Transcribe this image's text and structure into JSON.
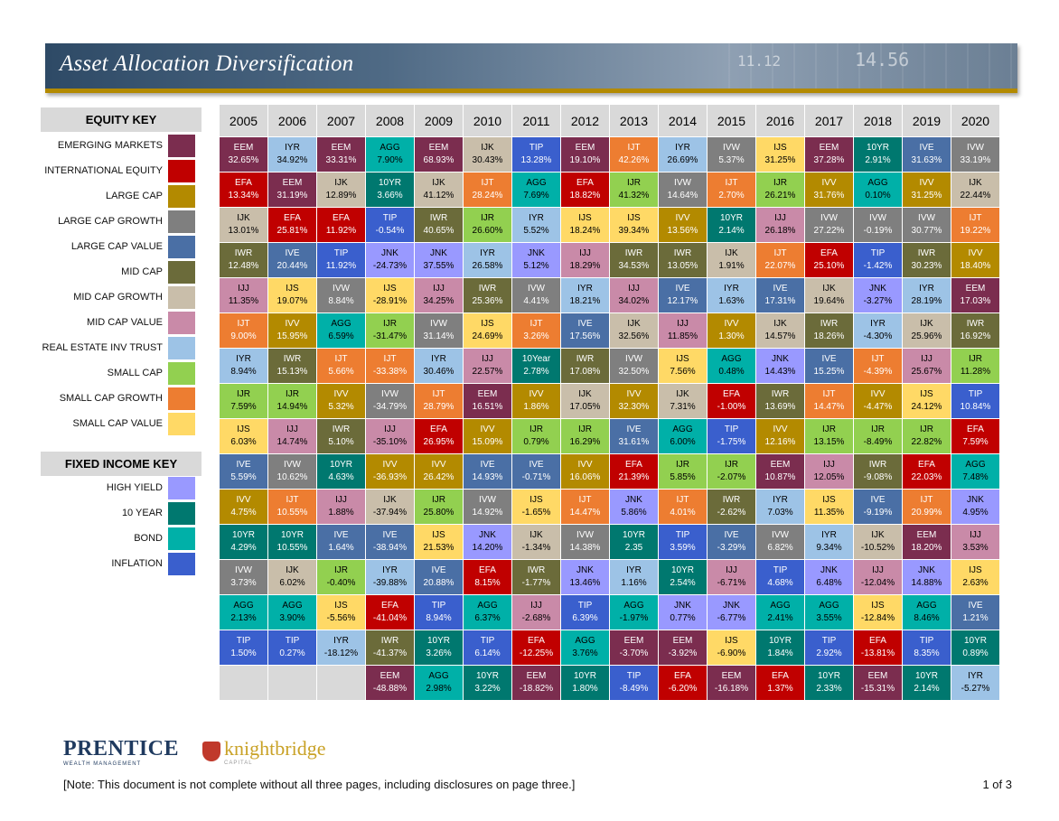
{
  "title": "Asset Allocation Diversification",
  "banner_numbers": [
    "11.12",
    "14.56"
  ],
  "equity_key": {
    "heading": "EQUITY KEY",
    "items": [
      {
        "label": "EMERGING MARKETS",
        "color": "#7b2d4f"
      },
      {
        "label": "INTERNATIONAL EQUITY",
        "color": "#c00000"
      },
      {
        "label": "LARGE CAP",
        "color": "#b38a00"
      },
      {
        "label": "LARGE CAP GROWTH",
        "color": "#7f7f7f"
      },
      {
        "label": "LARGE CAP VALUE",
        "color": "#4a6fa5"
      },
      {
        "label": "MID CAP",
        "color": "#6b6b3a"
      },
      {
        "label": "MID CAP GROWTH",
        "color": "#c9beaa"
      },
      {
        "label": "MID CAP VALUE",
        "color": "#c98aa8"
      },
      {
        "label": "REAL ESTATE INV TRUST",
        "color": "#9dc3e6"
      },
      {
        "label": "SMALL CAP",
        "color": "#92d050"
      },
      {
        "label": "SMALL  CAP GROWTH",
        "color": "#ed7d31"
      },
      {
        "label": "SMALL CAP VALUE",
        "color": "#ffd966"
      }
    ]
  },
  "fixed_key": {
    "heading": "FIXED INCOME KEY",
    "items": [
      {
        "label": "HIGH  YIELD",
        "color": "#9999ff"
      },
      {
        "label": "10 YEAR",
        "color": "#00786f"
      },
      {
        "label": "BOND",
        "color": "#00b0a8"
      },
      {
        "label": "INFLATION",
        "color": "#3a5fcd"
      }
    ]
  },
  "palette": {
    "EEM": "#7b2d4f",
    "EFA": "#c00000",
    "IVV": "#b38a00",
    "IVW": "#7f7f7f",
    "IVE": "#4a6fa5",
    "IWR": "#6b6b3a",
    "IJK": "#c9beaa",
    "IJJ": "#c98aa8",
    "IYR": "#9dc3e6",
    "IJR": "#92d050",
    "IJT": "#ed7d31",
    "IJS": "#ffd966",
    "JNK": "#9999ff",
    "10YR": "#00786f",
    "10Year": "#00786f",
    "AGG": "#00b0a8",
    "TIP": "#3a5fcd"
  },
  "years": [
    "2005",
    "2006",
    "2007",
    "2008",
    "2009",
    "2010",
    "2011",
    "2012",
    "2013",
    "2014",
    "2015",
    "2016",
    "2017",
    "2018",
    "2019",
    "2020"
  ],
  "rows": [
    [
      [
        "EEM",
        "32.65%"
      ],
      [
        "IYR",
        "34.92%"
      ],
      [
        "EEM",
        "33.31%"
      ],
      [
        "AGG",
        "7.90%"
      ],
      [
        "EEM",
        "68.93%"
      ],
      [
        "IJK",
        "30.43%"
      ],
      [
        "TIP",
        "13.28%"
      ],
      [
        "EEM",
        "19.10%"
      ],
      [
        "IJT",
        "42.26%"
      ],
      [
        "IYR",
        "26.69%"
      ],
      [
        "IVW",
        "5.37%"
      ],
      [
        "IJS",
        "31.25%"
      ],
      [
        "EEM",
        "37.28%"
      ],
      [
        "10YR",
        "2.91%"
      ],
      [
        "IVE",
        "31.63%"
      ],
      [
        "IVW",
        "33.19%"
      ]
    ],
    [
      [
        "EFA",
        "13.34%"
      ],
      [
        "EEM",
        "31.19%"
      ],
      [
        "IJK",
        "12.89%"
      ],
      [
        "10YR",
        "3.66%"
      ],
      [
        "IJK",
        "41.12%"
      ],
      [
        "IJT",
        "28.24%"
      ],
      [
        "AGG",
        "7.69%"
      ],
      [
        "EFA",
        "18.82%"
      ],
      [
        "IJR",
        "41.32%"
      ],
      [
        "IVW",
        "14.64%"
      ],
      [
        "IJT",
        "2.70%"
      ],
      [
        "IJR",
        "26.21%"
      ],
      [
        "IVV",
        "31.76%"
      ],
      [
        "AGG",
        "0.10%"
      ],
      [
        "IVV",
        "31.25%"
      ],
      [
        "IJK",
        "22.44%"
      ]
    ],
    [
      [
        "IJK",
        "13.01%"
      ],
      [
        "EFA",
        "25.81%"
      ],
      [
        "EFA",
        "11.92%"
      ],
      [
        "TIP",
        "-0.54%"
      ],
      [
        "IWR",
        "40.65%"
      ],
      [
        "IJR",
        "26.60%"
      ],
      [
        "IYR",
        "5.52%"
      ],
      [
        "IJS",
        "18.24%"
      ],
      [
        "IJS",
        "39.34%"
      ],
      [
        "IVV",
        "13.56%"
      ],
      [
        "10YR",
        "2.14%"
      ],
      [
        "IJJ",
        "26.18%"
      ],
      [
        "IVW",
        "27.22%"
      ],
      [
        "IVW",
        "-0.19%"
      ],
      [
        "IVW",
        "30.77%"
      ],
      [
        "IJT",
        "19.22%"
      ]
    ],
    [
      [
        "IWR",
        "12.48%"
      ],
      [
        "IVE",
        "20.44%"
      ],
      [
        "TIP",
        "11.92%"
      ],
      [
        "JNK",
        "-24.73%"
      ],
      [
        "JNK",
        "37.55%"
      ],
      [
        "IYR",
        "26.58%"
      ],
      [
        "JNK",
        "5.12%"
      ],
      [
        "IJJ",
        "18.29%"
      ],
      [
        "IWR",
        "34.53%"
      ],
      [
        "IWR",
        "13.05%"
      ],
      [
        "IJK",
        "1.91%"
      ],
      [
        "IJT",
        "22.07%"
      ],
      [
        "EFA",
        "25.10%"
      ],
      [
        "TIP",
        "-1.42%"
      ],
      [
        "IWR",
        "30.23%"
      ],
      [
        "IVV",
        "18.40%"
      ]
    ],
    [
      [
        "IJJ",
        "11.35%"
      ],
      [
        "IJS",
        "19.07%"
      ],
      [
        "IVW",
        "8.84%"
      ],
      [
        "IJS",
        "-28.91%"
      ],
      [
        "IJJ",
        "34.25%"
      ],
      [
        "IWR",
        "25.36%"
      ],
      [
        "IVW",
        "4.41%"
      ],
      [
        "IYR",
        "18.21%"
      ],
      [
        "IJJ",
        "34.02%"
      ],
      [
        "IVE",
        "12.17%"
      ],
      [
        "IYR",
        "1.63%"
      ],
      [
        "IVE",
        "17.31%"
      ],
      [
        "IJK",
        "19.64%"
      ],
      [
        "JNK",
        "-3.27%"
      ],
      [
        "IYR",
        "28.19%"
      ],
      [
        "EEM",
        "17.03%"
      ]
    ],
    [
      [
        "IJT",
        "9.00%"
      ],
      [
        "IVV",
        "15.95%"
      ],
      [
        "AGG",
        "6.59%"
      ],
      [
        "IJR",
        "-31.47%"
      ],
      [
        "IVW",
        "31.14%"
      ],
      [
        "IJS",
        "24.69%"
      ],
      [
        "IJT",
        "3.26%"
      ],
      [
        "IVE",
        "17.56%"
      ],
      [
        "IJK",
        "32.56%"
      ],
      [
        "IJJ",
        "11.85%"
      ],
      [
        "IVV",
        "1.30%"
      ],
      [
        "IJK",
        "14.57%"
      ],
      [
        "IWR",
        "18.26%"
      ],
      [
        "IYR",
        "-4.30%"
      ],
      [
        "IJK",
        "25.96%"
      ],
      [
        "IWR",
        "16.92%"
      ]
    ],
    [
      [
        "IYR",
        "8.94%"
      ],
      [
        "IWR",
        "15.13%"
      ],
      [
        "IJT",
        "5.66%"
      ],
      [
        "IJT",
        "-33.38%"
      ],
      [
        "IYR",
        "30.46%"
      ],
      [
        "IJJ",
        "22.57%"
      ],
      [
        "10Year",
        "2.78%"
      ],
      [
        "IWR",
        "17.08%"
      ],
      [
        "IVW",
        "32.50%"
      ],
      [
        "IJS",
        "7.56%"
      ],
      [
        "AGG",
        "0.48%"
      ],
      [
        "JNK",
        "14.43%"
      ],
      [
        "IVE",
        "15.25%"
      ],
      [
        "IJT",
        "-4.39%"
      ],
      [
        "IJJ",
        "25.67%"
      ],
      [
        "IJR",
        "11.28%"
      ]
    ],
    [
      [
        "IJR",
        "7.59%"
      ],
      [
        "IJR",
        "14.94%"
      ],
      [
        "IVV",
        "5.32%"
      ],
      [
        "IVW",
        "-34.79%"
      ],
      [
        "IJT",
        "28.79%"
      ],
      [
        "EEM",
        "16.51%"
      ],
      [
        "IVV",
        "1.86%"
      ],
      [
        "IJK",
        "17.05%"
      ],
      [
        "IVV",
        "32.30%"
      ],
      [
        "IJK",
        "7.31%"
      ],
      [
        "EFA",
        "-1.00%"
      ],
      [
        "IWR",
        "13.69%"
      ],
      [
        "IJT",
        "14.47%"
      ],
      [
        "IVV",
        "-4.47%"
      ],
      [
        "IJS",
        "24.12%"
      ],
      [
        "TIP",
        "10.84%"
      ]
    ],
    [
      [
        "IJS",
        "6.03%"
      ],
      [
        "IJJ",
        "14.74%"
      ],
      [
        "IWR",
        "5.10%"
      ],
      [
        "IJJ",
        "-35.10%"
      ],
      [
        "EFA",
        "26.95%"
      ],
      [
        "IVV",
        "15.09%"
      ],
      [
        "IJR",
        "0.79%"
      ],
      [
        "IJR",
        "16.29%"
      ],
      [
        "IVE",
        "31.61%"
      ],
      [
        "AGG",
        "6.00%"
      ],
      [
        "TIP",
        "-1.75%"
      ],
      [
        "IVV",
        "12.16%"
      ],
      [
        "IJR",
        "13.15%"
      ],
      [
        "IJR",
        "-8.49%"
      ],
      [
        "IJR",
        "22.82%"
      ],
      [
        "EFA",
        "7.59%"
      ]
    ],
    [
      [
        "IVE",
        "5.59%"
      ],
      [
        "IVW",
        "10.62%"
      ],
      [
        "10YR",
        "4.63%"
      ],
      [
        "IVV",
        "-36.93%"
      ],
      [
        "IVV",
        "26.42%"
      ],
      [
        "IVE",
        "14.93%"
      ],
      [
        "IVE",
        "-0.71%"
      ],
      [
        "IVV",
        "16.06%"
      ],
      [
        "EFA",
        "21.39%"
      ],
      [
        "IJR",
        "5.85%"
      ],
      [
        "IJR",
        "-2.07%"
      ],
      [
        "EEM",
        "10.87%"
      ],
      [
        "IJJ",
        "12.05%"
      ],
      [
        "IWR",
        "-9.08%"
      ],
      [
        "EFA",
        "22.03%"
      ],
      [
        "AGG",
        "7.48%"
      ]
    ],
    [
      [
        "IVV",
        "4.75%"
      ],
      [
        "IJT",
        "10.55%"
      ],
      [
        "IJJ",
        "1.88%"
      ],
      [
        "IJK",
        "-37.94%"
      ],
      [
        "IJR",
        "25.80%"
      ],
      [
        "IVW",
        "14.92%"
      ],
      [
        "IJS",
        "-1.65%"
      ],
      [
        "IJT",
        "14.47%"
      ],
      [
        "JNK",
        "5.86%"
      ],
      [
        "IJT",
        "4.01%"
      ],
      [
        "IWR",
        "-2.62%"
      ],
      [
        "IYR",
        "7.03%"
      ],
      [
        "IJS",
        "11.35%"
      ],
      [
        "IVE",
        "-9.19%"
      ],
      [
        "IJT",
        "20.99%"
      ],
      [
        "JNK",
        "4.95%"
      ]
    ],
    [
      [
        "10YR",
        "4.29%"
      ],
      [
        "10YR",
        "10.55%"
      ],
      [
        "IVE",
        "1.64%"
      ],
      [
        "IVE",
        "-38.94%"
      ],
      [
        "IJS",
        "21.53%"
      ],
      [
        "JNK",
        "14.20%"
      ],
      [
        "IJK",
        "-1.34%"
      ],
      [
        "IVW",
        "14.38%"
      ],
      [
        "10YR",
        "2.35"
      ],
      [
        "TIP",
        "3.59%"
      ],
      [
        "IVE",
        "-3.29%"
      ],
      [
        "IVW",
        "6.82%"
      ],
      [
        "IYR",
        "9.34%"
      ],
      [
        "IJK",
        "-10.52%"
      ],
      [
        "EEM",
        "18.20%"
      ],
      [
        "IJJ",
        "3.53%"
      ]
    ],
    [
      [
        "IVW",
        "3.73%"
      ],
      [
        "IJK",
        "6.02%"
      ],
      [
        "IJR",
        "-0.40%"
      ],
      [
        "IYR",
        "-39.88%"
      ],
      [
        "IVE",
        "20.88%"
      ],
      [
        "EFA",
        "8.15%"
      ],
      [
        "IWR",
        "-1.77%"
      ],
      [
        "JNK",
        "13.46%"
      ],
      [
        "IYR",
        "1.16%"
      ],
      [
        "10YR",
        "2.54%"
      ],
      [
        "IJJ",
        "-6.71%"
      ],
      [
        "TIP",
        "4.68%"
      ],
      [
        "JNK",
        "6.48%"
      ],
      [
        "IJJ",
        "-12.04%"
      ],
      [
        "JNK",
        "14.88%"
      ],
      [
        "IJS",
        "2.63%"
      ]
    ],
    [
      [
        "AGG",
        "2.13%"
      ],
      [
        "AGG",
        "3.90%"
      ],
      [
        "IJS",
        "-5.56%"
      ],
      [
        "EFA",
        "-41.04%"
      ],
      [
        "TIP",
        "8.94%"
      ],
      [
        "AGG",
        "6.37%"
      ],
      [
        "IJJ",
        "-2.68%"
      ],
      [
        "TIP",
        "6.39%"
      ],
      [
        "AGG",
        "-1.97%"
      ],
      [
        "JNK",
        "0.77%"
      ],
      [
        "JNK",
        "-6.77%"
      ],
      [
        "AGG",
        "2.41%"
      ],
      [
        "AGG",
        "3.55%"
      ],
      [
        "IJS",
        "-12.84%"
      ],
      [
        "AGG",
        "8.46%"
      ],
      [
        "IVE",
        "1.21%"
      ]
    ],
    [
      [
        "TIP",
        "1.50%"
      ],
      [
        "TIP",
        "0.27%"
      ],
      [
        "IYR",
        "-18.12%"
      ],
      [
        "IWR",
        "-41.37%"
      ],
      [
        "10YR",
        "3.26%"
      ],
      [
        "TIP",
        "6.14%"
      ],
      [
        "EFA",
        "-12.25%"
      ],
      [
        "AGG",
        "3.76%"
      ],
      [
        "EEM",
        "-3.70%"
      ],
      [
        "EEM",
        "-3.92%"
      ],
      [
        "IJS",
        "-6.90%"
      ],
      [
        "10YR",
        "1.84%"
      ],
      [
        "TIP",
        "2.92%"
      ],
      [
        "EFA",
        "-13.81%"
      ],
      [
        "TIP",
        "8.35%"
      ],
      [
        "10YR",
        "0.89%"
      ]
    ],
    [
      null,
      null,
      null,
      [
        "EEM",
        "-48.88%"
      ],
      [
        "AGG",
        "2.98%"
      ],
      [
        "10YR",
        "3.22%"
      ],
      [
        "EEM",
        "-18.82%"
      ],
      [
        "10YR",
        "1.80%"
      ],
      [
        "TIP",
        "-8.49%"
      ],
      [
        "EFA",
        "-6.20%"
      ],
      [
        "EEM",
        "-16.18%"
      ],
      [
        "EFA",
        "1.37%"
      ],
      [
        "10YR",
        "2.33%"
      ],
      [
        "EEM",
        "-15.31%"
      ],
      [
        "10YR",
        "2.14%"
      ],
      [
        "IYR",
        "-5.27%"
      ]
    ]
  ],
  "footer": {
    "logo1_name": "PRENTICE",
    "logo1_sub": "WEALTH MANAGEMENT",
    "logo2_name": "knightbridge",
    "logo2_sub": "CAPITAL",
    "note": "[Note: This document is not complete without all three pages, including disclosures on page three.]",
    "page": "1 of 3"
  }
}
